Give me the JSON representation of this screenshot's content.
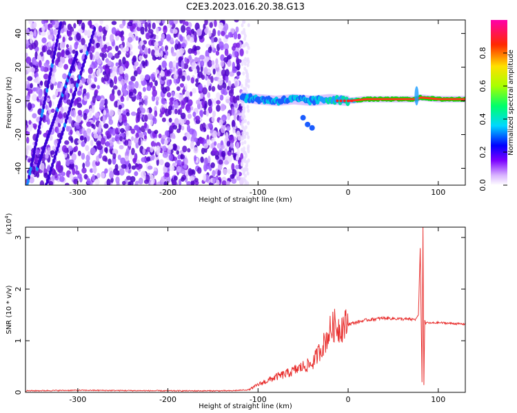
{
  "title": "C2E3.2023.016.20.38.G13",
  "chart_data": [
    {
      "type": "heatmap",
      "xlabel": "Height of straight line (km)",
      "ylabel": "Frequency (Hz)",
      "xlim": [
        -358,
        130
      ],
      "ylim": [
        -50,
        48
      ],
      "x_ticks": [
        -300,
        -200,
        -100,
        0,
        100
      ],
      "y_ticks": [
        -40,
        -20,
        0,
        20,
        40
      ],
      "noise_region_x": [
        -358,
        -118
      ],
      "signal_track": [
        {
          "x": -118,
          "y": 2
        },
        {
          "x": -100,
          "y": 1
        },
        {
          "x": -80,
          "y": 0
        },
        {
          "x": -60,
          "y": 1
        },
        {
          "x": -40,
          "y": 0
        },
        {
          "x": -20,
          "y": 1
        },
        {
          "x": 0,
          "y": 0
        },
        {
          "x": 20,
          "y": 1
        },
        {
          "x": 50,
          "y": 1
        },
        {
          "x": 75,
          "y": 1
        },
        {
          "x": 80,
          "y": 2
        },
        {
          "x": 100,
          "y": 1
        },
        {
          "x": 130,
          "y": 1
        }
      ],
      "side_track": [
        {
          "x": -50,
          "y": -10
        },
        {
          "x": -45,
          "y": -14
        },
        {
          "x": -40,
          "y": -16
        }
      ],
      "colorbar": {
        "label": "Normalized spectral amplitude",
        "ticks": [
          0.0,
          0.2,
          0.4,
          0.6,
          0.8
        ],
        "range": [
          0,
          1
        ]
      }
    },
    {
      "type": "line",
      "xlabel": "Height of straight line (km)",
      "ylabel": "SNR (10 * v/v)",
      "y_multiplier": "(x10",
      "y_multiplier_exp": "4",
      "y_multiplier_close": ")",
      "xlim": [
        -358,
        130
      ],
      "ylim": [
        0,
        3.2
      ],
      "x_ticks": [
        -300,
        -200,
        -100,
        0,
        100
      ],
      "y_ticks": [
        0,
        1,
        2,
        3
      ],
      "color": "#e8302f",
      "series": [
        {
          "x": [
            -358,
            -300,
            -200,
            -130,
            -110,
            -100,
            -90,
            -80,
            -70,
            -60,
            -50,
            -40,
            -35,
            -30,
            -25,
            -20,
            -15,
            -10,
            -5,
            0,
            10,
            20,
            30,
            40,
            50,
            60,
            70,
            75,
            78,
            80,
            82,
            83,
            84,
            85,
            86,
            88,
            90,
            100,
            110,
            120,
            130
          ],
          "values": [
            0.03,
            0.04,
            0.03,
            0.03,
            0.05,
            0.15,
            0.22,
            0.3,
            0.35,
            0.42,
            0.5,
            0.55,
            0.7,
            0.85,
            1.0,
            1.2,
            1.3,
            1.25,
            1.3,
            1.32,
            1.36,
            1.4,
            1.42,
            1.44,
            1.43,
            1.42,
            1.41,
            1.42,
            1.5,
            2.8,
            0.2,
            3.2,
            0.15,
            1.4,
            1.33,
            1.36,
            1.34,
            1.35,
            1.34,
            1.33,
            1.32
          ]
        }
      ]
    }
  ]
}
